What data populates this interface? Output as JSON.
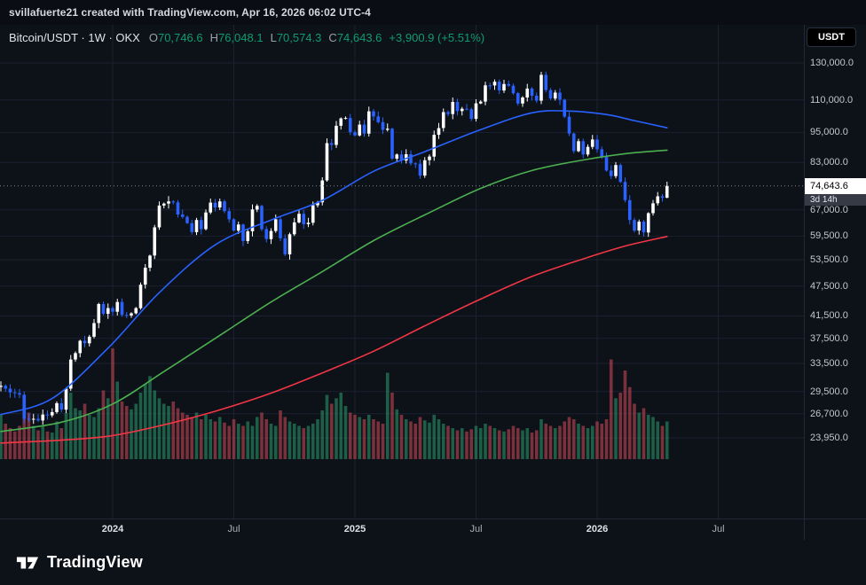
{
  "attribution": {
    "text": "svillafuerte21 created with TradingView.com, Apr 16, 2026 06:02 UTC-4"
  },
  "header": {
    "series_title": "Bitcoin/USDT · 1W · OKX",
    "ohlc": [
      {
        "label": "O",
        "value": "70,746.6"
      },
      {
        "label": "H",
        "value": "76,048.1"
      },
      {
        "label": "L",
        "value": "70,574.3"
      },
      {
        "label": "C",
        "value": "74,643.6"
      }
    ],
    "change": "+3,900.9 (+5.51%)"
  },
  "price_scale": {
    "currency_button": "USDT",
    "countdown": "3d 14h"
  },
  "footer": {
    "brand": "TradingView",
    "logo_icon": "tradingview-17-mark"
  },
  "colors": {
    "background": "#0d1118",
    "topbar_background": "#0a0d13",
    "grid": "#1b2130",
    "axis_separator": "#232838",
    "text_primary": "#d5d8e0",
    "text_secondary": "#9aa0ab",
    "candle_up": "#ffffff",
    "candle_down": "#2962ff",
    "vol_up": "rgba(44,158,112,0.55)",
    "vol_down": "rgba(214,77,89,0.55)",
    "value_up": "#0f9d6e",
    "last_price_line": "#86898f",
    "last_price_bg": "#ffffff",
    "last_price_text": "#000000",
    "countdown_bg": "#363a45"
  },
  "chart_data": {
    "type": "candlestick",
    "symbol": "Bitcoin/USDT",
    "exchange": "OKX",
    "interval": "1W",
    "scale": "log",
    "grid": true,
    "legend_position": "top-left",
    "last": {
      "open": 70746.6,
      "high": 76048.1,
      "low": 70574.3,
      "close": 74643.6,
      "change": 3900.9,
      "change_pct": 5.51
    },
    "price_axis": {
      "scale": "log",
      "min": 22500,
      "max": 138000
    },
    "price_ticks": [
      130000,
      110000,
      95000,
      83000,
      67000,
      59500,
      53500,
      47500,
      41500,
      37500,
      33500,
      29500,
      26700,
      23950
    ],
    "time_axis": {
      "labels": [
        {
          "text": "2024",
          "week": 24,
          "major": true
        },
        {
          "text": "Jul",
          "week": 50,
          "major": false
        },
        {
          "text": "2025",
          "week": 76,
          "major": true
        },
        {
          "text": "Jul",
          "week": 102,
          "major": false
        },
        {
          "text": "2026",
          "week": 128,
          "major": true
        },
        {
          "text": "Jul",
          "week": 154,
          "major": false
        }
      ]
    },
    "closes": [
      30300,
      29900,
      29400,
      29300,
      29100,
      26100,
      26000,
      26100,
      25900,
      26600,
      26500,
      26900,
      28000,
      27200,
      29900,
      34100,
      35100,
      37100,
      36700,
      37800,
      40200,
      43800,
      41900,
      43000,
      42300,
      44200,
      41700,
      41600,
      42000,
      43000,
      47800,
      51600,
      54500,
      61900,
      68300,
      68900,
      69600,
      69300,
      65600,
      64900,
      63100,
      60600,
      64000,
      61400,
      66200,
      69200,
      67700,
      69600,
      66600,
      64200,
      61000,
      62700,
      58200,
      60800,
      67100,
      68200,
      61400,
      58700,
      60900,
      64200,
      58900,
      54800,
      60000,
      63300,
      65800,
      62800,
      63200,
      68400,
      69300,
      76500,
      90500,
      89800,
      97900,
      101200,
      101400,
      95100,
      93700,
      98400,
      94500,
      104500,
      102100,
      99500,
      96100,
      96600,
      84400,
      86000,
      83700,
      86100,
      82600,
      82500,
      78200,
      83800,
      85200,
      94000,
      96900,
      104100,
      103200,
      109000,
      104600,
      105700,
      105500,
      101000,
      108300,
      109200,
      117500,
      117400,
      119400,
      114800,
      118200,
      117300,
      113400,
      108200,
      111200,
      115800,
      112100,
      109600,
      123200,
      115000,
      110700,
      113700,
      110100,
      102000,
      94500,
      87300,
      91300,
      86000,
      89000,
      92000,
      88000,
      85000,
      80000,
      78000,
      82000,
      76000,
      70000,
      64000,
      61000,
      63500,
      60500,
      66000,
      69000,
      71200,
      70746.6,
      74643.6
    ],
    "volumes": [
      0.4,
      0.32,
      0.28,
      0.25,
      0.3,
      0.55,
      0.42,
      0.3,
      0.26,
      0.3,
      0.25,
      0.24,
      0.34,
      0.28,
      0.42,
      0.6,
      0.46,
      0.44,
      0.5,
      0.4,
      0.38,
      0.46,
      0.62,
      0.55,
      1.0,
      0.7,
      0.52,
      0.48,
      0.45,
      0.5,
      0.6,
      0.68,
      0.75,
      0.62,
      0.55,
      0.5,
      0.48,
      0.52,
      0.46,
      0.42,
      0.4,
      0.38,
      0.42,
      0.36,
      0.4,
      0.36,
      0.34,
      0.38,
      0.33,
      0.3,
      0.36,
      0.32,
      0.3,
      0.34,
      0.3,
      0.38,
      0.42,
      0.36,
      0.32,
      0.3,
      0.44,
      0.38,
      0.34,
      0.32,
      0.3,
      0.28,
      0.3,
      0.32,
      0.36,
      0.44,
      0.58,
      0.5,
      0.55,
      0.6,
      0.48,
      0.42,
      0.4,
      0.38,
      0.36,
      0.4,
      0.36,
      0.34,
      0.32,
      0.78,
      0.6,
      0.45,
      0.4,
      0.36,
      0.34,
      0.32,
      0.38,
      0.35,
      0.33,
      0.4,
      0.36,
      0.32,
      0.3,
      0.28,
      0.26,
      0.28,
      0.25,
      0.27,
      0.3,
      0.28,
      0.32,
      0.3,
      0.28,
      0.26,
      0.25,
      0.27,
      0.3,
      0.28,
      0.26,
      0.28,
      0.24,
      0.26,
      0.36,
      0.32,
      0.3,
      0.28,
      0.3,
      0.34,
      0.38,
      0.36,
      0.32,
      0.3,
      0.28,
      0.3,
      0.34,
      0.32,
      0.36,
      0.9,
      0.55,
      0.6,
      0.8,
      0.65,
      0.5,
      0.42,
      0.46,
      0.4,
      0.38,
      0.34,
      0.3,
      0.34
    ],
    "mas": [
      {
        "name": "ma-fast-line",
        "color": "#2962ff",
        "points": [
          [
            0,
            26600
          ],
          [
            11,
            28600
          ],
          [
            23,
            35900
          ],
          [
            34,
            46100
          ],
          [
            46,
            57200
          ],
          [
            58,
            64000
          ],
          [
            69,
            69900
          ],
          [
            80,
            79700
          ],
          [
            91,
            87100
          ],
          [
            103,
            96200
          ],
          [
            114,
            103800
          ],
          [
            122,
            104600
          ],
          [
            130,
            103000
          ],
          [
            136,
            100200
          ],
          [
            143,
            97000
          ]
        ]
      },
      {
        "name": "ma-mid-line",
        "color": "#4caf50",
        "points": [
          [
            0,
            24650
          ],
          [
            13,
            25700
          ],
          [
            24,
            27900
          ],
          [
            35,
            32300
          ],
          [
            46,
            37500
          ],
          [
            58,
            44200
          ],
          [
            69,
            50700
          ],
          [
            80,
            58300
          ],
          [
            91,
            65500
          ],
          [
            103,
            73800
          ],
          [
            114,
            80000
          ],
          [
            125,
            83900
          ],
          [
            134,
            86300
          ],
          [
            143,
            87700
          ]
        ]
      },
      {
        "name": "ma-slow-line",
        "color": "#f23645",
        "points": [
          [
            0,
            23400
          ],
          [
            13,
            23700
          ],
          [
            24,
            24200
          ],
          [
            35,
            25400
          ],
          [
            46,
            27000
          ],
          [
            58,
            29300
          ],
          [
            69,
            32100
          ],
          [
            80,
            35400
          ],
          [
            91,
            39700
          ],
          [
            103,
            44800
          ],
          [
            114,
            49600
          ],
          [
            125,
            53700
          ],
          [
            134,
            56900
          ],
          [
            143,
            59400
          ]
        ]
      }
    ]
  }
}
